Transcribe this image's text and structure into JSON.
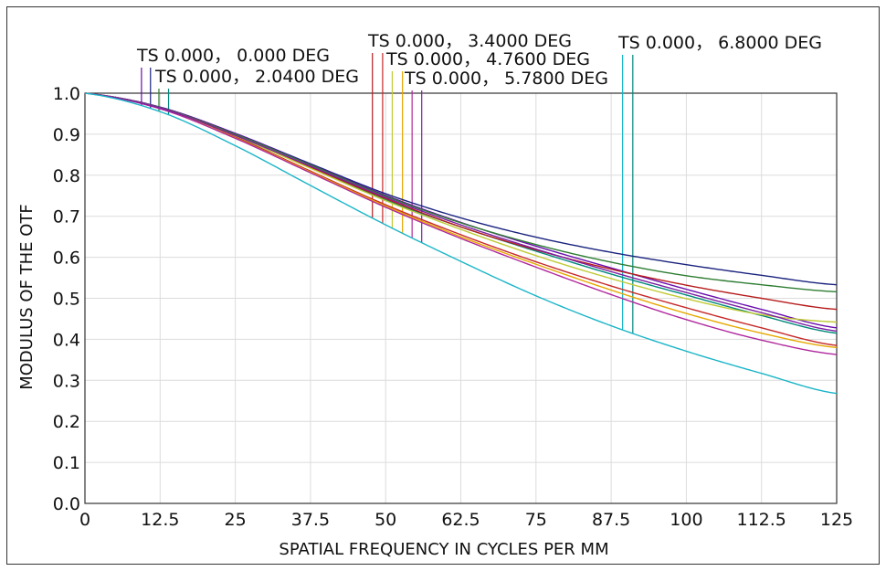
{
  "chart_data": {
    "type": "line",
    "xlabel": "SPATIAL FREQUENCY IN CYCLES PER MM",
    "ylabel": "MODULUS OF THE OTF",
    "xlim": [
      0,
      125
    ],
    "ylim": [
      0,
      1
    ],
    "x_ticks": [
      "0",
      "12.5",
      "25",
      "37.5",
      "50",
      "62.5",
      "75",
      "87.5",
      "100",
      "112.5",
      "125"
    ],
    "y_ticks": [
      "0.0",
      "0.1",
      "0.2",
      "0.3",
      "0.4",
      "0.5",
      "0.6",
      "0.7",
      "0.8",
      "0.9",
      "1.0"
    ],
    "grid": true,
    "x": [
      0,
      12.5,
      25,
      37.5,
      50,
      62.5,
      75,
      87.5,
      100,
      112.5,
      125
    ],
    "annotations": [
      {
        "text": "TS 0.000， 0.000 DEG",
        "marker_x": [
          9.4,
          10.9
        ]
      },
      {
        "text": "TS 0.000， 2.0400 DEG",
        "marker_x": [
          12.3,
          13.9
        ]
      },
      {
        "text": "TS 0.000， 3.4000 DEG",
        "marker_x": [
          47.8,
          49.5
        ]
      },
      {
        "text": "TS 0.000， 4.7600 DEG",
        "marker_x": [
          51.1,
          52.8
        ]
      },
      {
        "text": "TS 0.000， 5.7800 DEG",
        "marker_x": [
          54.4,
          56.0
        ]
      },
      {
        "text": "TS 0.000， 6.8000 DEG",
        "marker_x": [
          89.4,
          91.1
        ]
      }
    ],
    "series": [
      {
        "color": "#1a237e",
        "values": [
          1.0,
          0.966,
          0.902,
          0.828,
          0.755,
          0.696,
          0.649,
          0.612,
          0.582,
          0.556,
          0.533
        ]
      },
      {
        "color": "#6a0dad",
        "values": [
          1.0,
          0.966,
          0.902,
          0.826,
          0.751,
          0.685,
          0.627,
          0.574,
          0.522,
          0.473,
          0.428
        ]
      },
      {
        "color": "#2e7d32",
        "values": [
          1.0,
          0.965,
          0.9,
          0.825,
          0.749,
          0.684,
          0.631,
          0.588,
          0.555,
          0.533,
          0.516
        ]
      },
      {
        "color": "#00897b",
        "values": [
          1.0,
          0.963,
          0.895,
          0.818,
          0.74,
          0.674,
          0.615,
          0.559,
          0.508,
          0.458,
          0.415
        ]
      },
      {
        "color": "#b71c1c",
        "values": [
          1.0,
          0.964,
          0.897,
          0.82,
          0.743,
          0.674,
          0.618,
          0.571,
          0.532,
          0.5,
          0.473
        ]
      },
      {
        "color": "#c62828",
        "values": [
          1.0,
          0.963,
          0.893,
          0.81,
          0.728,
          0.655,
          0.589,
          0.53,
          0.477,
          0.428,
          0.385
        ]
      },
      {
        "color": "#c0ca33",
        "values": [
          1.0,
          0.964,
          0.896,
          0.817,
          0.738,
          0.668,
          0.604,
          0.548,
          0.499,
          0.46,
          0.442
        ]
      },
      {
        "color": "#e6a800",
        "values": [
          1.0,
          0.963,
          0.891,
          0.808,
          0.725,
          0.65,
          0.583,
          0.52,
          0.463,
          0.415,
          0.38
        ]
      },
      {
        "color": "#b0279e",
        "values": [
          1.0,
          0.962,
          0.89,
          0.806,
          0.722,
          0.646,
          0.576,
          0.509,
          0.448,
          0.398,
          0.363
        ]
      },
      {
        "color": "#7b1fa2",
        "values": [
          1.0,
          0.964,
          0.897,
          0.822,
          0.746,
          0.679,
          0.62,
          0.565,
          0.514,
          0.465,
          0.42
        ]
      },
      {
        "color": "#1ab5c8",
        "values": [
          1.0,
          0.955,
          0.872,
          0.775,
          0.679,
          0.59,
          0.506,
          0.433,
          0.371,
          0.317,
          0.268
        ]
      }
    ]
  }
}
